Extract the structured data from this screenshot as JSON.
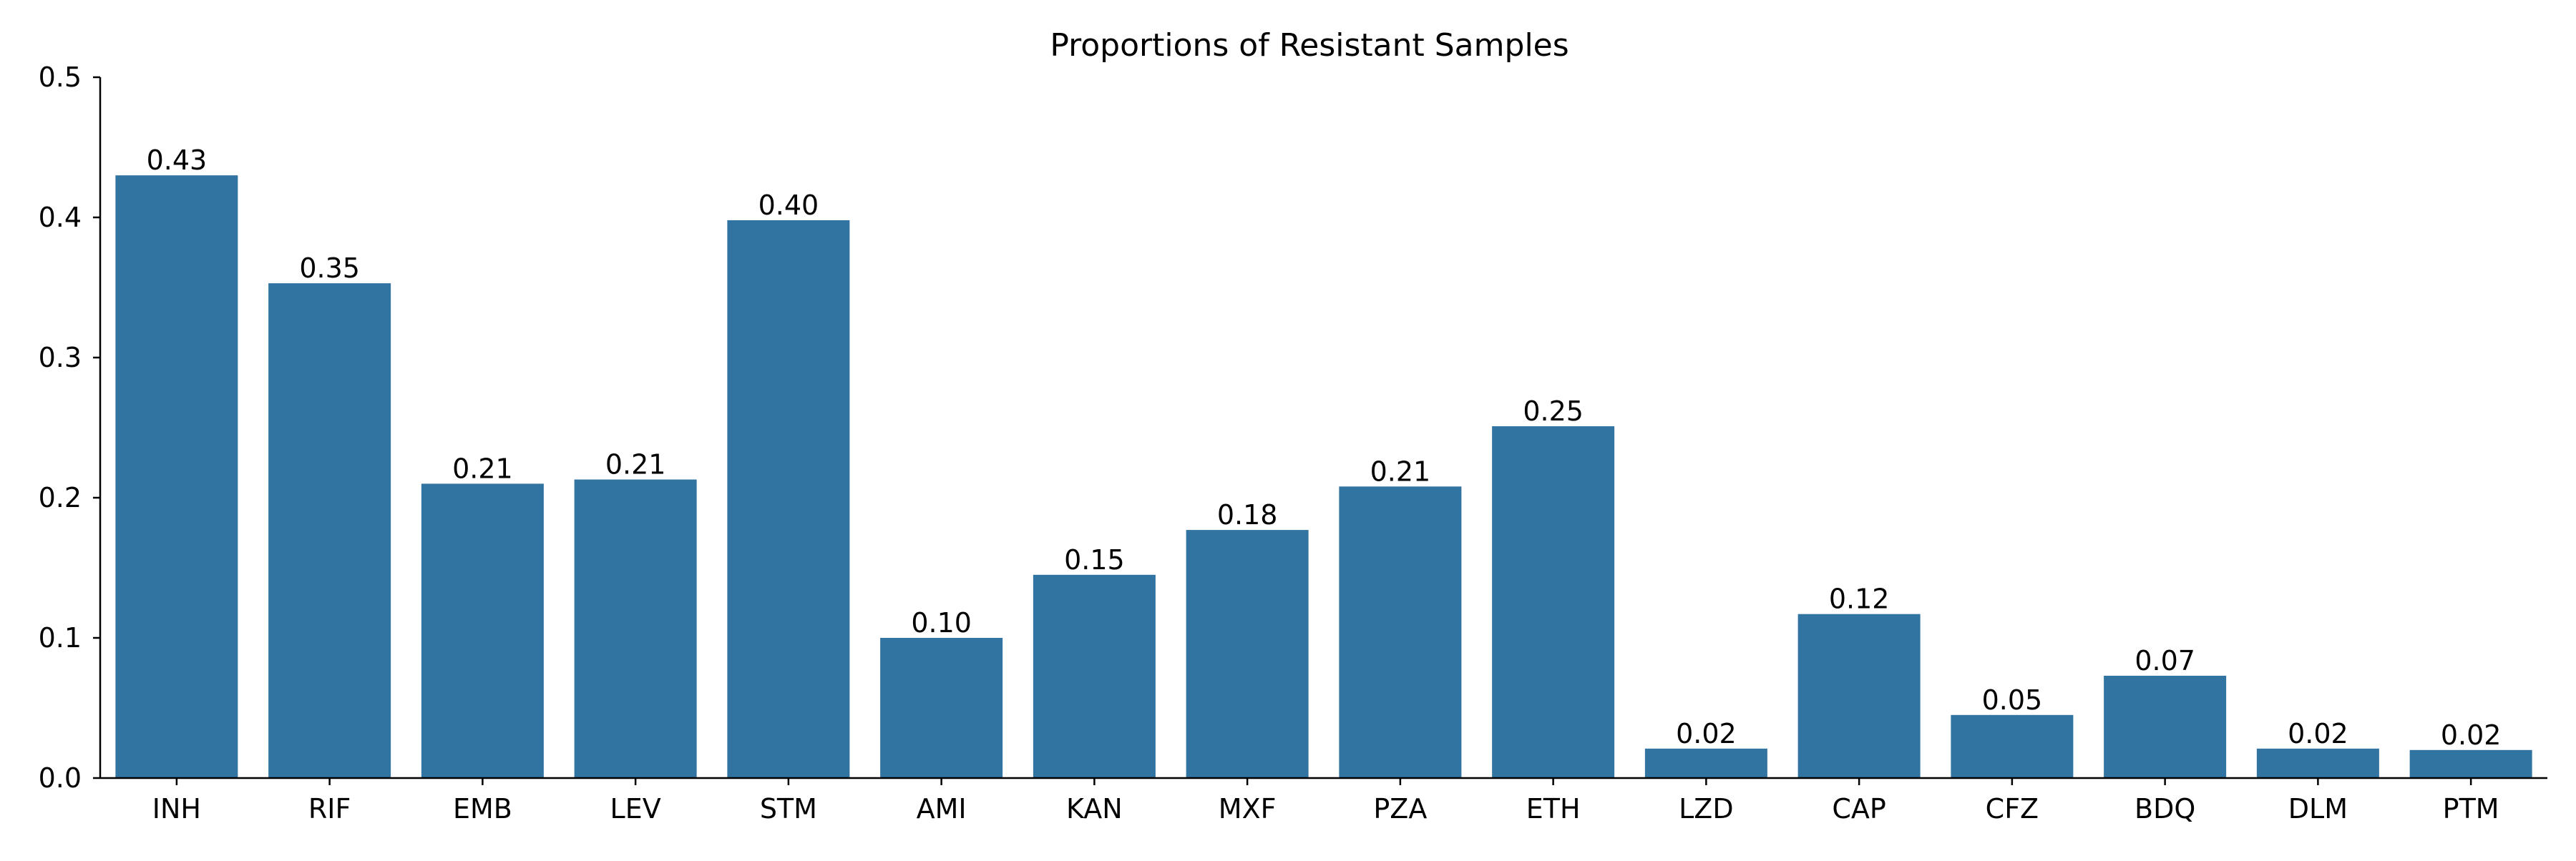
{
  "chart_data": {
    "type": "bar",
    "title": "Proportions of Resistant Samples",
    "xlabel": "",
    "ylabel": "",
    "categories": [
      "INH",
      "RIF",
      "EMB",
      "LEV",
      "STM",
      "AMI",
      "KAN",
      "MXF",
      "PZA",
      "ETH",
      "LZD",
      "CAP",
      "CFZ",
      "BDQ",
      "DLM",
      "PTM"
    ],
    "values": [
      0.43,
      0.353,
      0.21,
      0.213,
      0.398,
      0.1,
      0.145,
      0.177,
      0.208,
      0.251,
      0.021,
      0.117,
      0.045,
      0.073,
      0.021,
      0.02
    ],
    "data_labels": [
      "0.43",
      "0.35",
      "0.21",
      "0.21",
      "0.40",
      "0.10",
      "0.15",
      "0.18",
      "0.21",
      "0.25",
      "0.02",
      "0.12",
      "0.05",
      "0.07",
      "0.02",
      "0.02"
    ],
    "ylim": [
      0,
      0.5
    ],
    "yticks": [
      0.0,
      0.1,
      0.2,
      0.3,
      0.4,
      0.5
    ],
    "ytick_labels": [
      "0.0",
      "0.1",
      "0.2",
      "0.3",
      "0.4",
      "0.5"
    ],
    "grid": false,
    "legend": "none",
    "bar_color": "#3274a1",
    "axis_color": "#000000"
  }
}
